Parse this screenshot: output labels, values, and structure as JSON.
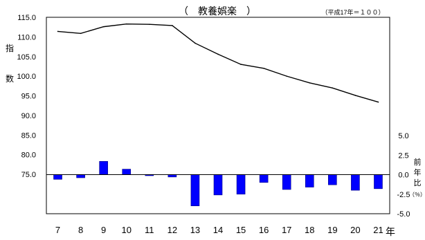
{
  "chart_data": {
    "type": "bar+line",
    "title": "（　教養娯楽　）",
    "note": "（平成17年＝１００）",
    "categories": [
      "7",
      "8",
      "9",
      "10",
      "11",
      "12",
      "13",
      "14",
      "15",
      "16",
      "17",
      "18",
      "19",
      "20",
      "21"
    ],
    "x_unit": "年",
    "left_axis": {
      "label": [
        "指",
        "数"
      ],
      "ticks": [
        "115.0",
        "110.0",
        "105.0",
        "100.0",
        "95.0",
        "90.0",
        "85.0",
        "80.0",
        "75.0"
      ],
      "range": [
        75,
        115
      ]
    },
    "right_axis": {
      "label": [
        "前",
        "年",
        "比",
        "（％）"
      ],
      "ticks": [
        "5.0",
        "2.5",
        "0.0",
        "-2.5",
        "-5.0"
      ],
      "range": [
        -5,
        5
      ]
    },
    "series": [
      {
        "type": "line",
        "axis": "left",
        "values": [
          111.4,
          110.9,
          112.6,
          113.3,
          113.2,
          112.9,
          108.4,
          105.6,
          103.0,
          102.0,
          100.0,
          98.3,
          97.0,
          95.1,
          93.4
        ],
        "color": "#000000"
      },
      {
        "type": "bar",
        "axis": "right",
        "values": [
          -0.6,
          -0.4,
          1.7,
          0.7,
          -0.1,
          -0.3,
          -4.0,
          -2.6,
          -2.5,
          -1.0,
          -1.9,
          -1.6,
          -1.3,
          -2.0,
          -1.8
        ],
        "color": "#0000ff"
      }
    ]
  }
}
